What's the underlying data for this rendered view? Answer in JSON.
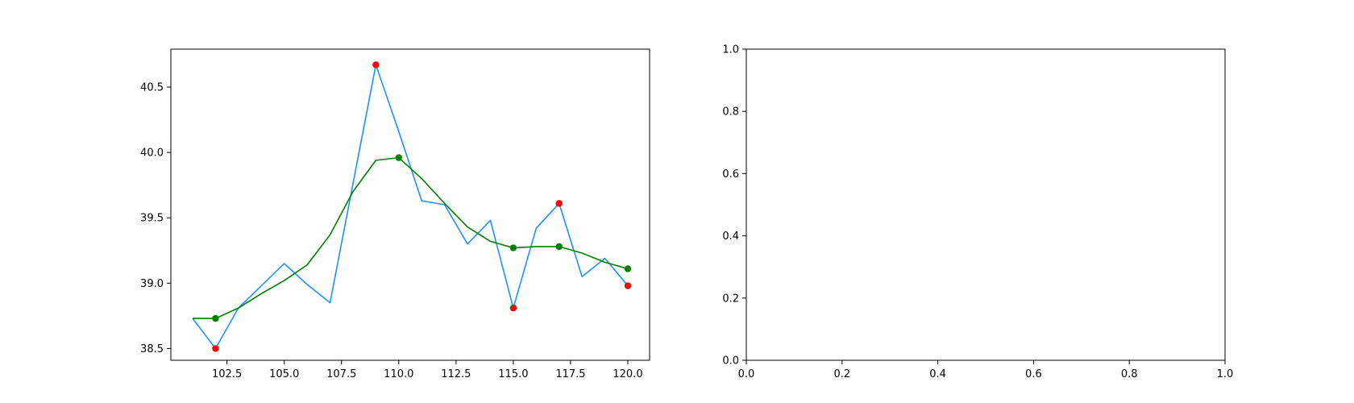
{
  "figure": {
    "background": "#ffffff"
  },
  "chart_data": [
    {
      "type": "line",
      "title": "",
      "xlabel": "",
      "ylabel": "",
      "xlim": [
        100.05,
        120.95
      ],
      "ylim": [
        38.41,
        40.79
      ],
      "xticks": [
        102.5,
        105.0,
        107.5,
        110.0,
        112.5,
        115.0,
        117.5,
        120.0
      ],
      "xtick_labels": [
        "102.5",
        "105.0",
        "107.5",
        "110.0",
        "112.5",
        "115.0",
        "117.5",
        "120.0"
      ],
      "yticks": [
        38.5,
        39.0,
        39.5,
        40.0,
        40.5
      ],
      "ytick_labels": [
        "38.5",
        "39.0",
        "39.5",
        "40.0",
        "40.5"
      ],
      "grid": false,
      "legend": "none",
      "x": [
        101,
        102,
        103,
        104,
        105,
        106,
        107,
        108,
        109,
        110,
        111,
        112,
        113,
        114,
        115,
        116,
        117,
        118,
        119,
        120
      ],
      "series": [
        {
          "color": "#1e90ff",
          "values": [
            38.73,
            38.5,
            38.81,
            38.98,
            39.15,
            38.99,
            38.85,
            39.76,
            40.67,
            40.16,
            39.63,
            39.6,
            39.3,
            39.48,
            38.81,
            39.42,
            39.61,
            39.05,
            39.19,
            38.98
          ]
        },
        {
          "color": "#008000",
          "values": [
            38.73,
            38.73,
            38.81,
            38.92,
            39.02,
            39.14,
            39.37,
            39.7,
            39.94,
            39.96,
            39.8,
            39.61,
            39.43,
            39.32,
            39.27,
            39.28,
            39.28,
            39.23,
            39.16,
            39.11
          ]
        }
      ],
      "markers": [
        {
          "color": "#ff0000",
          "points": [
            [
              102,
              38.5
            ],
            [
              109,
              40.67
            ],
            [
              115,
              38.81
            ],
            [
              117,
              39.61
            ],
            [
              120,
              38.98
            ]
          ]
        },
        {
          "color": "#008000",
          "points": [
            [
              102,
              38.73
            ],
            [
              110,
              39.96
            ],
            [
              115,
              39.27
            ],
            [
              117,
              39.28
            ],
            [
              120,
              39.11
            ]
          ]
        }
      ]
    },
    {
      "type": "line",
      "title": "",
      "xlabel": "",
      "ylabel": "",
      "xlim": [
        0.0,
        1.0
      ],
      "ylim": [
        0.0,
        1.0
      ],
      "xticks": [
        0.0,
        0.2,
        0.4,
        0.6,
        0.8,
        1.0
      ],
      "xtick_labels": [
        "0.0",
        "0.2",
        "0.4",
        "0.6",
        "0.8",
        "1.0"
      ],
      "yticks": [
        0.0,
        0.2,
        0.4,
        0.6,
        0.8,
        1.0
      ],
      "ytick_labels": [
        "0.0",
        "0.2",
        "0.4",
        "0.6",
        "0.8",
        "1.0"
      ],
      "grid": false,
      "legend": "none",
      "x": [],
      "series": [],
      "markers": []
    }
  ]
}
